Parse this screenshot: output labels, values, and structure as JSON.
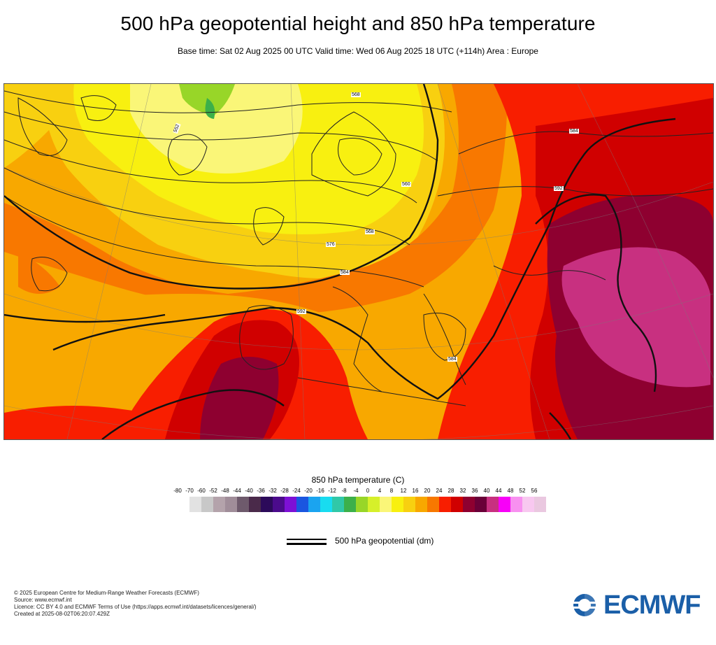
{
  "title": "500 hPa geopotential height and 850 hPa temperature",
  "subtitle": "Base time: Sat 02 Aug 2025 00 UTC Valid time: Wed 06 Aug 2025 18 UTC (+114h) Area : Europe",
  "legend": {
    "temperature_title": "850 hPa temperature (C)",
    "ticks": [
      "-80",
      "-70",
      "-60",
      "-52",
      "-48",
      "-44",
      "-40",
      "-36",
      "-32",
      "-28",
      "-24",
      "-20",
      "-16",
      "-12",
      "-8",
      "-4",
      "0",
      "4",
      "8",
      "12",
      "16",
      "20",
      "24",
      "28",
      "32",
      "36",
      "40",
      "44",
      "48",
      "52",
      "56"
    ],
    "colors": [
      "#e2e2e2",
      "#c8c8c8",
      "#b4a3ab",
      "#a08d99",
      "#6e5a6c",
      "#4a2a4a",
      "#2c0a5a",
      "#4b0b8c",
      "#7d10d6",
      "#1a56e0",
      "#1aa4f0",
      "#18dcf0",
      "#30c8a8",
      "#3cb04a",
      "#98d628",
      "#d6f02a",
      "#faf678",
      "#f8f010",
      "#f8d010",
      "#f8a800",
      "#f87800",
      "#f81e00",
      "#d00000",
      "#8e0030",
      "#6a0038",
      "#c83080",
      "#f800f8",
      "#f890f0",
      "#f8c8f0",
      "#eac8e0"
    ],
    "geopotential_label": "500 hPa geopotential (dm)"
  },
  "contour_labels": [
    "584",
    "568",
    "576",
    "560",
    "552",
    "584",
    "592",
    "584",
    "568",
    "584",
    "576",
    "568",
    "584",
    "592"
  ],
  "footer": {
    "copyright": "© 2025 European Centre for Medium-Range Weather Forecasts (ECMWF)",
    "source": "Source: www.ecmwf.int",
    "licence": "Licence: CC BY 4.0 and ECMWF Terms of Use (https://apps.ecmwf.int/datasets/licences/general/)",
    "created": "Created at 2025-08-02T06:20:07.429Z"
  },
  "logo": {
    "text": "ECMWF",
    "color": "#1b5fa8"
  }
}
